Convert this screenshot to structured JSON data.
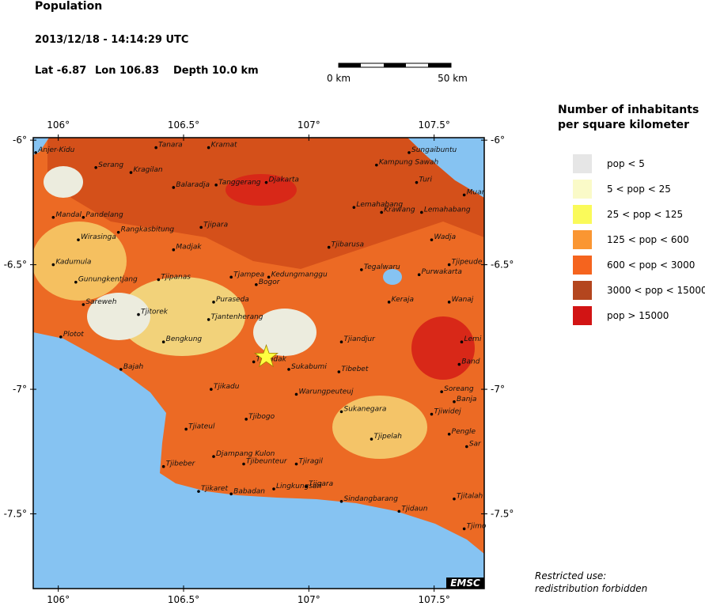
{
  "header": {
    "title": "Population",
    "datetime": "2013/12/18 - 14:14:29 UTC",
    "lat": "Lat -6.87",
    "lon": "Lon 106.83",
    "depth": "Depth  10.0 km"
  },
  "scale_bar": {
    "start": "0 km",
    "end": "50 km"
  },
  "map": {
    "lonlim": [
      105.9,
      107.7
    ],
    "latlim": [
      -5.99,
      -7.8
    ],
    "lon_ticks": [
      {
        "value": 106,
        "label": "106°"
      },
      {
        "value": 106.5,
        "label": "106.5°"
      },
      {
        "value": 107,
        "label": "107°"
      },
      {
        "value": 107.5,
        "label": "107.5°"
      }
    ],
    "lat_ticks": [
      {
        "value": -6,
        "label": "-6°"
      },
      {
        "value": -6.5,
        "label": "-6.5°"
      },
      {
        "value": -7,
        "label": "-7°"
      },
      {
        "value": -7.5,
        "label": "-7.5°"
      }
    ],
    "epicenter": {
      "lon": 106.83,
      "lat": -6.87
    },
    "cities": [
      {
        "name": "Anjer-Kidu",
        "lon": 105.91,
        "lat": -6.05
      },
      {
        "name": "Tanara",
        "lon": 106.39,
        "lat": -6.03
      },
      {
        "name": "Kramat",
        "lon": 106.6,
        "lat": -6.03
      },
      {
        "name": "Sungaibuntu",
        "lon": 107.4,
        "lat": -6.05
      },
      {
        "name": "Serang",
        "lon": 106.15,
        "lat": -6.11
      },
      {
        "name": "Kragilan",
        "lon": 106.29,
        "lat": -6.13
      },
      {
        "name": "Kampung Sawah",
        "lon": 107.27,
        "lat": -6.1
      },
      {
        "name": "Turi",
        "lon": 107.43,
        "lat": -6.17
      },
      {
        "name": "Balaradja",
        "lon": 106.46,
        "lat": -6.19
      },
      {
        "name": "Tanggerang",
        "lon": 106.63,
        "lat": -6.18
      },
      {
        "name": "Djakarta",
        "lon": 106.83,
        "lat": -6.17
      },
      {
        "name": "Muar",
        "lon": 107.62,
        "lat": -6.22
      },
      {
        "name": "Lemahabang",
        "lon": 107.18,
        "lat": -6.27
      },
      {
        "name": "Krawang",
        "lon": 107.29,
        "lat": -6.29
      },
      {
        "name": "Lemahabang",
        "lon": 107.45,
        "lat": -6.29
      },
      {
        "name": "Mandal",
        "lon": 105.98,
        "lat": -6.31
      },
      {
        "name": "Pandelang",
        "lon": 106.1,
        "lat": -6.31
      },
      {
        "name": "Tjipara",
        "lon": 106.57,
        "lat": -6.35
      },
      {
        "name": "Rangkasbitung",
        "lon": 106.24,
        "lat": -6.37
      },
      {
        "name": "Wirasinga",
        "lon": 106.08,
        "lat": -6.4
      },
      {
        "name": "Wadja",
        "lon": 107.49,
        "lat": -6.4
      },
      {
        "name": "Tjibarusa",
        "lon": 107.08,
        "lat": -6.43
      },
      {
        "name": "Madjak",
        "lon": 106.46,
        "lat": -6.44
      },
      {
        "name": "Kadumula",
        "lon": 105.98,
        "lat": -6.5
      },
      {
        "name": "Tjipeude",
        "lon": 107.56,
        "lat": -6.5
      },
      {
        "name": "Tegalwaru",
        "lon": 107.21,
        "lat": -6.52
      },
      {
        "name": "Kedungmanggu",
        "lon": 106.84,
        "lat": -6.55
      },
      {
        "name": "Tjampea",
        "lon": 106.69,
        "lat": -6.55
      },
      {
        "name": "Purwakarta",
        "lon": 107.44,
        "lat": -6.54
      },
      {
        "name": "Gunungkentjang",
        "lon": 106.07,
        "lat": -6.57
      },
      {
        "name": "Tjipanas",
        "lon": 106.4,
        "lat": -6.56
      },
      {
        "name": "Bogor",
        "lon": 106.79,
        "lat": -6.58
      },
      {
        "name": "Wanaj",
        "lon": 107.56,
        "lat": -6.65
      },
      {
        "name": "Keraja",
        "lon": 107.32,
        "lat": -6.65
      },
      {
        "name": "Sareweh",
        "lon": 106.1,
        "lat": -6.66
      },
      {
        "name": "Puraseda",
        "lon": 106.62,
        "lat": -6.65
      },
      {
        "name": "Tjitorek",
        "lon": 106.32,
        "lat": -6.7
      },
      {
        "name": "Tjantenherang",
        "lon": 106.6,
        "lat": -6.72
      },
      {
        "name": "Plotot",
        "lon": 106.01,
        "lat": -6.79
      },
      {
        "name": "Bengkung",
        "lon": 106.42,
        "lat": -6.81
      },
      {
        "name": "Tjiandjur",
        "lon": 107.13,
        "lat": -6.81
      },
      {
        "name": "Lemi",
        "lon": 107.61,
        "lat": -6.81
      },
      {
        "name": "Tjihadak",
        "lon": 106.78,
        "lat": -6.89
      },
      {
        "name": "Sukabumi",
        "lon": 106.92,
        "lat": -6.92
      },
      {
        "name": "Tibebet",
        "lon": 107.12,
        "lat": -6.93
      },
      {
        "name": "Band",
        "lon": 107.6,
        "lat": -6.9
      },
      {
        "name": "Bajah",
        "lon": 106.25,
        "lat": -6.92
      },
      {
        "name": "Tjikadu",
        "lon": 106.61,
        "lat": -7.0
      },
      {
        "name": "Warungpeuteuj",
        "lon": 106.95,
        "lat": -7.02
      },
      {
        "name": "Soreang",
        "lon": 107.53,
        "lat": -7.01
      },
      {
        "name": "Banja",
        "lon": 107.58,
        "lat": -7.05
      },
      {
        "name": "Sukanegara",
        "lon": 107.13,
        "lat": -7.09
      },
      {
        "name": "Tjiwidej",
        "lon": 107.49,
        "lat": -7.1
      },
      {
        "name": "Tjibogo",
        "lon": 106.75,
        "lat": -7.12
      },
      {
        "name": "Tjiateul",
        "lon": 106.51,
        "lat": -7.16
      },
      {
        "name": "Pengle",
        "lon": 107.56,
        "lat": -7.18
      },
      {
        "name": "Tjipelah",
        "lon": 107.25,
        "lat": -7.2
      },
      {
        "name": "Sar",
        "lon": 107.63,
        "lat": -7.23
      },
      {
        "name": "Djampang Kulon",
        "lon": 106.62,
        "lat": -7.27
      },
      {
        "name": "Tjibeunteur",
        "lon": 106.74,
        "lat": -7.3
      },
      {
        "name": "Tjiragil",
        "lon": 106.95,
        "lat": -7.3
      },
      {
        "name": "Tjibeber",
        "lon": 106.42,
        "lat": -7.31
      },
      {
        "name": "Tjikaret",
        "lon": 106.56,
        "lat": -7.41
      },
      {
        "name": "Babadan",
        "lon": 106.69,
        "lat": -7.42
      },
      {
        "name": "Lingkungsari",
        "lon": 106.86,
        "lat": -7.4
      },
      {
        "name": "Tjigara",
        "lon": 106.99,
        "lat": -7.39
      },
      {
        "name": "Tjitalah",
        "lon": 107.58,
        "lat": -7.44
      },
      {
        "name": "Sindangbarang",
        "lon": 107.13,
        "lat": -7.45
      },
      {
        "name": "Tjidaun",
        "lon": 107.36,
        "lat": -7.49
      },
      {
        "name": "Tjimo",
        "lon": 107.62,
        "lat": -7.56
      }
    ]
  },
  "legend": {
    "title": [
      "Number of inhabitants",
      "per square kilometer"
    ],
    "items": [
      {
        "label": "pop < 5",
        "color": "#e6e6e6"
      },
      {
        "label": "5 < pop < 25",
        "color": "#fafac8"
      },
      {
        "label": "25 < pop < 125",
        "color": "#fafa5a"
      },
      {
        "label": "125 < pop < 600",
        "color": "#fa9632"
      },
      {
        "label": "600 < pop < 3000",
        "color": "#f5641e"
      },
      {
        "label": "3000 < pop < 15000",
        "color": "#b4461e"
      },
      {
        "label": "pop > 15000",
        "color": "#d21414"
      }
    ]
  },
  "logo": "EMSC",
  "footer": [
    "Restricted use:",
    "redistribution forbidden"
  ]
}
